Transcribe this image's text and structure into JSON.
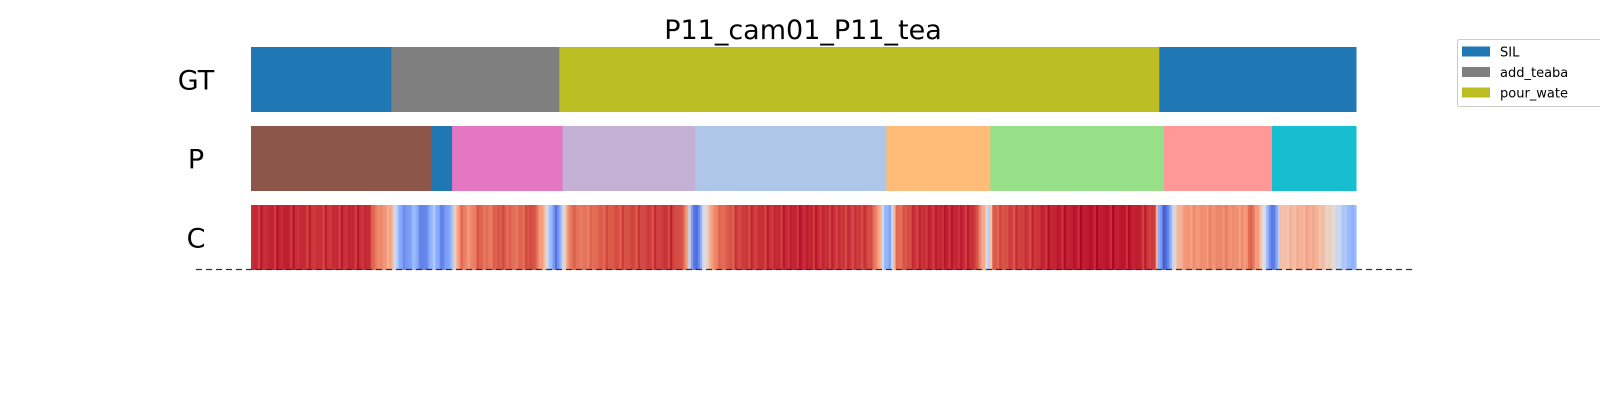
{
  "chart_data": {
    "type": "heatmap",
    "title": "P11_cam01_P11_tea",
    "x_range": [
      0,
      1
    ],
    "rows": [
      {
        "label": "GT",
        "segments": [
          {
            "start": 0.0,
            "end": 0.127,
            "action": "SIL",
            "color": "#1f77b4"
          },
          {
            "start": 0.127,
            "end": 0.279,
            "action": "add_teabag",
            "color": "#7f7f7f"
          },
          {
            "start": 0.279,
            "end": 0.822,
            "action": "pour_water",
            "color": "#bcbd22"
          },
          {
            "start": 0.822,
            "end": 1.0,
            "action": "SIL",
            "color": "#1f77b4"
          }
        ]
      },
      {
        "label": "P",
        "segments": [
          {
            "start": 0.0,
            "end": 0.163,
            "color": "#8c564b"
          },
          {
            "start": 0.163,
            "end": 0.182,
            "color": "#1f77b4"
          },
          {
            "start": 0.182,
            "end": 0.282,
            "color": "#e377c2"
          },
          {
            "start": 0.282,
            "end": 0.402,
            "color": "#c5b0d5"
          },
          {
            "start": 0.402,
            "end": 0.575,
            "color": "#aec7e8"
          },
          {
            "start": 0.575,
            "end": 0.669,
            "color": "#ffbb78"
          },
          {
            "start": 0.669,
            "end": 0.826,
            "color": "#98df8a"
          },
          {
            "start": 0.826,
            "end": 0.924,
            "color": "#ff9896"
          },
          {
            "start": 0.924,
            "end": 1.0,
            "color": "#17becf"
          }
        ]
      },
      {
        "label": "C",
        "colormap": "coolwarm",
        "confidence_profile": [
          [
            0.0,
            0.93
          ],
          [
            0.03,
            0.95
          ],
          [
            0.06,
            0.92
          ],
          [
            0.09,
            0.94
          ],
          [
            0.108,
            0.93
          ],
          [
            0.112,
            0.78
          ],
          [
            0.12,
            0.72
          ],
          [
            0.128,
            0.62
          ],
          [
            0.134,
            0.3
          ],
          [
            0.14,
            0.18
          ],
          [
            0.148,
            0.35
          ],
          [
            0.155,
            0.12
          ],
          [
            0.16,
            0.22
          ],
          [
            0.166,
            0.4
          ],
          [
            0.172,
            0.15
          ],
          [
            0.18,
            0.28
          ],
          [
            0.19,
            0.82
          ],
          [
            0.198,
            0.7
          ],
          [
            0.206,
            0.86
          ],
          [
            0.215,
            0.78
          ],
          [
            0.225,
            0.88
          ],
          [
            0.24,
            0.8
          ],
          [
            0.255,
            0.9
          ],
          [
            0.266,
            0.6
          ],
          [
            0.272,
            0.3
          ],
          [
            0.277,
            0.1
          ],
          [
            0.282,
            0.45
          ],
          [
            0.29,
            0.84
          ],
          [
            0.3,
            0.78
          ],
          [
            0.32,
            0.86
          ],
          [
            0.34,
            0.88
          ],
          [
            0.36,
            0.9
          ],
          [
            0.38,
            0.92
          ],
          [
            0.392,
            0.85
          ],
          [
            0.396,
            0.55
          ],
          [
            0.4,
            0.15
          ],
          [
            0.404,
            0.05
          ],
          [
            0.408,
            0.4
          ],
          [
            0.414,
            0.6
          ],
          [
            0.422,
            0.8
          ],
          [
            0.44,
            0.9
          ],
          [
            0.47,
            0.93
          ],
          [
            0.5,
            0.95
          ],
          [
            0.53,
            0.92
          ],
          [
            0.56,
            0.9
          ],
          [
            0.568,
            0.7
          ],
          [
            0.574,
            0.35
          ],
          [
            0.578,
            0.25
          ],
          [
            0.584,
            0.8
          ],
          [
            0.6,
            0.92
          ],
          [
            0.63,
            0.95
          ],
          [
            0.655,
            0.93
          ],
          [
            0.664,
            0.6
          ],
          [
            0.668,
            0.4
          ],
          [
            0.672,
            0.85
          ],
          [
            0.69,
            0.9
          ],
          [
            0.71,
            0.92
          ],
          [
            0.72,
            0.95
          ],
          [
            0.76,
            0.97
          ],
          [
            0.8,
            0.96
          ],
          [
            0.818,
            0.9
          ],
          [
            0.822,
            0.3
          ],
          [
            0.826,
            0.05
          ],
          [
            0.83,
            0.15
          ],
          [
            0.836,
            0.55
          ],
          [
            0.845,
            0.7
          ],
          [
            0.86,
            0.72
          ],
          [
            0.88,
            0.75
          ],
          [
            0.9,
            0.7
          ],
          [
            0.905,
            0.85
          ],
          [
            0.912,
            0.65
          ],
          [
            0.918,
            0.45
          ],
          [
            0.922,
            0.2
          ],
          [
            0.926,
            0.1
          ],
          [
            0.932,
            0.58
          ],
          [
            0.945,
            0.62
          ],
          [
            0.96,
            0.66
          ],
          [
            0.975,
            0.55
          ],
          [
            0.985,
            0.45
          ],
          [
            0.992,
            0.35
          ],
          [
            1.0,
            0.3
          ]
        ]
      }
    ],
    "legend": {
      "placement": "top-right",
      "entries": [
        {
          "label": "SIL",
          "color": "#1f77b4"
        },
        {
          "label": "add_teaba",
          "color": "#7f7f7f"
        },
        {
          "label": "pour_wate",
          "color": "#bcbd22"
        }
      ]
    },
    "baseline": "dashed"
  }
}
